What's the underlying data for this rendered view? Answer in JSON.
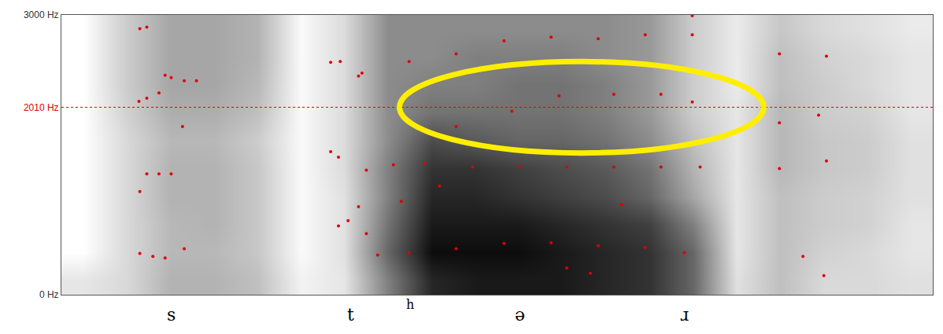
{
  "chart_data": {
    "type": "spectrogram",
    "xlim": [
      0,
      1
    ],
    "xticks": [],
    "ylim": [
      0,
      3000
    ],
    "yticks": [
      {
        "value": 0,
        "label": "0 Hz"
      },
      {
        "value": 2010,
        "label": "2010 Hz"
      },
      {
        "value": 3000,
        "label": "3000 Hz"
      }
    ],
    "tick_labels": "y",
    "grid": false,
    "cursor": {
      "y": 2010,
      "color": "#e00000"
    },
    "cells": {
      "x": [
        0,
        0.05,
        0.1,
        0.15,
        0.2,
        0.25,
        0.3,
        0.35,
        0.4,
        0.45,
        0.5,
        0.55,
        0.6,
        0.65,
        0.7,
        0.75,
        0.8,
        0.85,
        0.9,
        0.95,
        1
      ],
      "y": [
        0,
        300,
        600,
        900,
        1200,
        1500,
        1800,
        2100,
        2400,
        2700,
        3000
      ],
      "zlim": [
        0,
        1
      ],
      "z": [
        [
          0.1,
          0.15,
          0.3,
          0.3,
          0.25,
          0.05,
          0.1,
          0.5,
          0.85,
          0.9,
          0.9,
          0.9,
          0.85,
          0.8,
          0.6,
          0.12,
          0.25,
          0.15,
          0.15,
          0.12
        ],
        [
          0,
          0.15,
          0.28,
          0.28,
          0.22,
          0.02,
          0.12,
          0.6,
          0.95,
          0.95,
          0.95,
          0.9,
          0.85,
          0.8,
          0.6,
          0.1,
          0.25,
          0.18,
          0.15,
          0.1
        ],
        [
          0,
          0.15,
          0.28,
          0.3,
          0.22,
          0.02,
          0.12,
          0.55,
          0.9,
          0.9,
          0.9,
          0.85,
          0.8,
          0.75,
          0.5,
          0.1,
          0.25,
          0.2,
          0.18,
          0.1
        ],
        [
          0,
          0.15,
          0.3,
          0.3,
          0.22,
          0.02,
          0.12,
          0.5,
          0.85,
          0.85,
          0.8,
          0.75,
          0.7,
          0.6,
          0.35,
          0.1,
          0.25,
          0.2,
          0.18,
          0.12
        ],
        [
          0,
          0.15,
          0.3,
          0.3,
          0.22,
          0.02,
          0.14,
          0.5,
          0.8,
          0.8,
          0.75,
          0.7,
          0.65,
          0.55,
          0.3,
          0.1,
          0.28,
          0.22,
          0.2,
          0.12
        ],
        [
          0,
          0.15,
          0.28,
          0.28,
          0.2,
          0.02,
          0.14,
          0.45,
          0.7,
          0.65,
          0.6,
          0.6,
          0.55,
          0.45,
          0.25,
          0.1,
          0.28,
          0.22,
          0.2,
          0.12
        ],
        [
          0,
          0.18,
          0.32,
          0.32,
          0.25,
          0.02,
          0.14,
          0.45,
          0.55,
          0.55,
          0.55,
          0.55,
          0.5,
          0.4,
          0.2,
          0.1,
          0.28,
          0.2,
          0.18,
          0.1
        ],
        [
          0,
          0.2,
          0.35,
          0.35,
          0.28,
          0.02,
          0.14,
          0.45,
          0.5,
          0.5,
          0.55,
          0.55,
          0.5,
          0.4,
          0.2,
          0.08,
          0.25,
          0.2,
          0.15,
          0.1
        ],
        [
          0,
          0.2,
          0.35,
          0.35,
          0.3,
          0.02,
          0.14,
          0.45,
          0.45,
          0.5,
          0.5,
          0.5,
          0.45,
          0.4,
          0.2,
          0.08,
          0.25,
          0.18,
          0.15,
          0.1
        ],
        [
          0,
          0.2,
          0.35,
          0.35,
          0.3,
          0.02,
          0.14,
          0.45,
          0.45,
          0.45,
          0.45,
          0.45,
          0.45,
          0.4,
          0.2,
          0.08,
          0.22,
          0.15,
          0.12,
          0.08
        ]
      ]
    },
    "series": [
      {
        "type": "scatter",
        "marker": "dot",
        "color": "#e00000",
        "x": [
          0.09,
          0.098,
          0.089,
          0.098,
          0.112,
          0.119,
          0.126,
          0.141,
          0.155,
          0.139,
          0.098,
          0.112,
          0.126,
          0.09,
          0.09,
          0.105,
          0.119,
          0.141,
          0.309,
          0.32,
          0.309,
          0.318,
          0.318,
          0.329,
          0.341,
          0.341,
          0.35,
          0.363,
          0.399,
          0.453,
          0.508,
          0.562,
          0.616,
          0.67,
          0.715,
          0.58,
          0.607,
          0.35,
          0.381,
          0.417,
          0.472,
          0.526,
          0.58,
          0.634,
          0.688,
          0.733,
          0.39,
          0.434,
          0.643,
          0.453,
          0.517,
          0.571,
          0.634,
          0.688,
          0.724,
          0.345,
          0.399,
          0.453,
          0.508,
          0.562,
          0.616,
          0.67,
          0.724,
          0.724,
          0.824,
          0.878,
          0.824,
          0.869,
          0.824,
          0.878,
          0.851,
          0.875
        ],
        "values": [
          2852,
          2869,
          2074,
          2107,
          2164,
          2353,
          2328,
          2295,
          2295,
          1803,
          1295,
          1295,
          1295,
          1107,
          443,
          410,
          393,
          492,
          2492,
          2500,
          1533,
          1475,
          738,
          795,
          2344,
          943,
          656,
          426,
          451,
          492,
          549,
          557,
          525,
          508,
          451,
          287,
          230,
          1336,
          1393,
          1410,
          1369,
          1369,
          1369,
          1369,
          1369,
          1369,
          1000,
          1164,
          967,
          1803,
          1967,
          2131,
          2148,
          2148,
          2066,
          2377,
          2500,
          2582,
          2721,
          2762,
          2746,
          2787,
          2787,
          2992,
          2582,
          2557,
          1844,
          1926,
          1352,
          1434,
          410,
          205
        ]
      }
    ],
    "highlight": {
      "x": [
        0.388,
        0.806
      ],
      "y": [
        1520,
        2500
      ],
      "color": "#ffee00"
    },
    "segments": [
      {
        "label": "s",
        "x": 0.126
      },
      {
        "label": "t",
        "x": 0.332
      },
      {
        "label": "h",
        "x": 0.4,
        "superscript": true
      },
      {
        "label": "ə",
        "x": 0.526
      },
      {
        "label": "ɹ",
        "x": 0.715
      }
    ]
  }
}
